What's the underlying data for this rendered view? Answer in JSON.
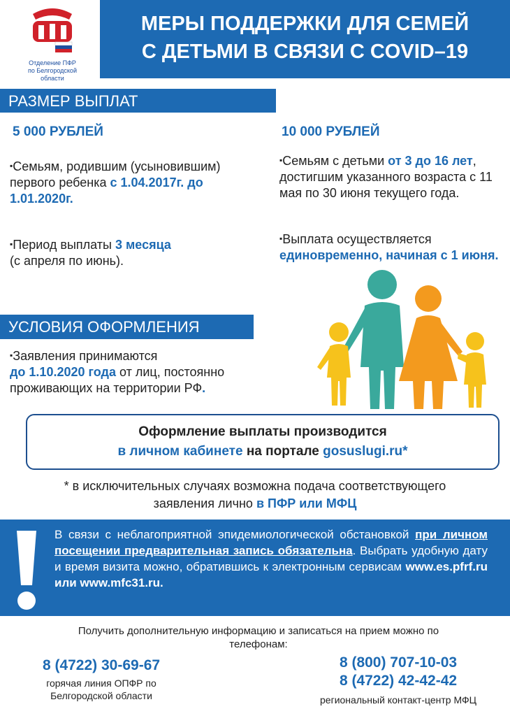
{
  "header": {
    "logo_caption": [
      "Отделение ПФР",
      "по Белгородской области"
    ],
    "title": [
      "МЕРЫ ПОДДЕРЖКИ ДЛЯ СЕМЕЙ",
      "С ДЕТЬМИ В СВЯЗИ С COVID–19"
    ]
  },
  "payments": {
    "heading": "РАЗМЕР ВЫПЛАТ",
    "left": {
      "amount": "5 000 РУБЛЕЙ",
      "items": [
        [
          "Семьям, родившим (усыновившим) первого ребенка",
          "с 1.04.2017г. до 1.01.2020г."
        ],
        [
          "Период выплаты",
          "3 месяца",
          "(с апреля по июнь)."
        ]
      ]
    },
    "right": {
      "amount": "10 000 РУБЛЕЙ",
      "items": [
        [
          "Семьям с детьми",
          "от 3 до 16 лет",
          ", достигшим указанного возраста с 11 мая по 30 июня текущего года."
        ],
        [
          "Выплата осуществляется",
          "единовременно, начиная с 1 июня."
        ]
      ]
    }
  },
  "conditions": {
    "heading": "УСЛОВИЯ ОФОРМЛЕНИЯ",
    "text": [
      "Заявления принимаются",
      "до 1.10.2020 года",
      "от лиц, постоянно проживающих на территории РФ",
      "."
    ]
  },
  "portal_box": [
    "Оформление выплаты производится",
    "в личном кабинете",
    "на портале",
    "gosuslugi.ru*"
  ],
  "footnote": [
    "* в исключительных случаях возможна подача соответствующего заявления лично",
    "в ПФР или МФЦ"
  ],
  "notice": [
    "В связи с неблагоприятной эпидемиологической обстановкой",
    "при личном посещении предварительная запись обязательна",
    ". Выбрать удобную дату и время визита можно, обратившись к электронным сервисам",
    "www.es.pfrf.ru или www.mfc31.ru."
  ],
  "contacts": {
    "intro": "Получить дополнительную информацию и записаться на прием можно по телефонам:",
    "left": {
      "phones": [
        "8 (4722) 30-69-67"
      ],
      "caption": "горячая линия ОПФР по Белгородской области"
    },
    "right": {
      "phones": [
        "8 (800) 707-10-03",
        "8 (4722) 42-42-42"
      ],
      "caption": "региональный контакт-центр МФЦ"
    }
  }
}
